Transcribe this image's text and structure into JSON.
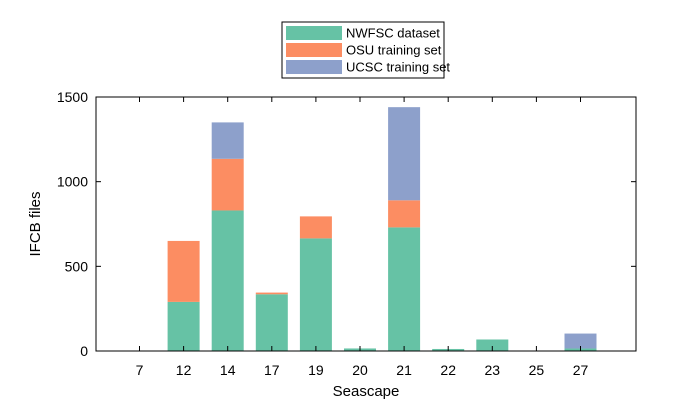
{
  "chart_data": {
    "type": "bar",
    "stacked": true,
    "categories": [
      "7",
      "12",
      "14",
      "17",
      "19",
      "20",
      "21",
      "22",
      "23",
      "25",
      "27"
    ],
    "series": [
      {
        "name": "NWFSC dataset",
        "color": "#66c2a5",
        "values": [
          0,
          290,
          830,
          335,
          665,
          15,
          730,
          12,
          68,
          0,
          15
        ]
      },
      {
        "name": "OSU training set",
        "color": "#fc8d62",
        "values": [
          0,
          360,
          305,
          10,
          130,
          0,
          160,
          0,
          0,
          0,
          0
        ]
      },
      {
        "name": "UCSC training set",
        "color": "#8da0cb",
        "values": [
          0,
          0,
          215,
          0,
          0,
          0,
          550,
          0,
          0,
          0,
          88
        ]
      }
    ],
    "xlabel": "Seascape",
    "ylabel": "IFCB files",
    "ylim": [
      0,
      1500
    ],
    "yticks": [
      0,
      500,
      1000,
      1500
    ],
    "grid": false,
    "legend_position": "top-center"
  }
}
